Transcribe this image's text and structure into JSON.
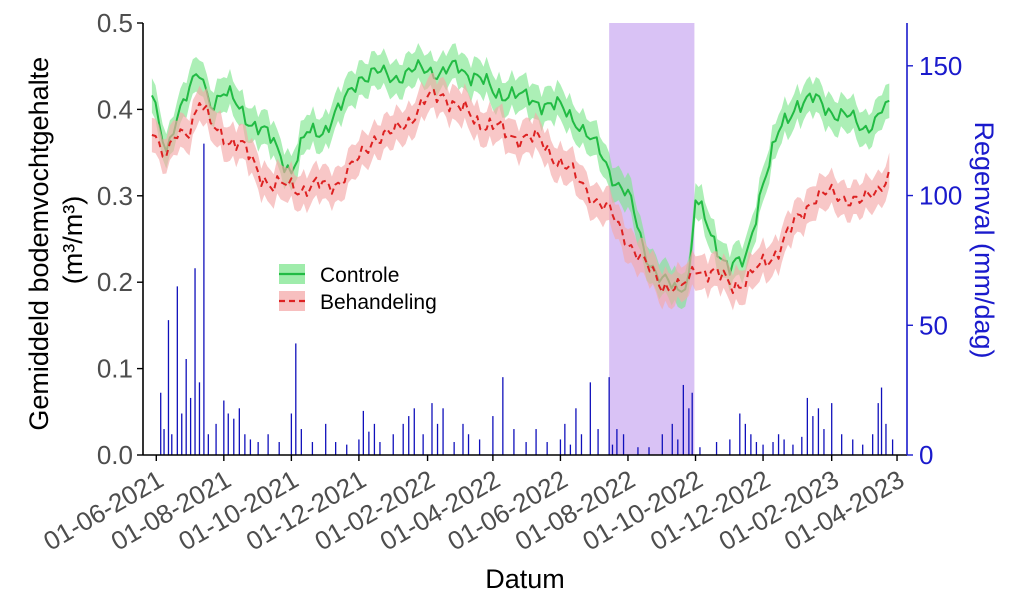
{
  "chart_data": {
    "type": "line",
    "xlabel": "Datum",
    "ylabel": [
      "Gemiddeld bodemvochtgehalte",
      "(m³/m³)"
    ],
    "y2label": "Regenval (mm/dag)",
    "x_range": [
      "2021-05-20",
      "2023-04-10"
    ],
    "ylim": [
      0,
      0.5
    ],
    "y2lim": [
      0,
      166.5
    ],
    "x_ticks": [
      "2021-06-01",
      "2021-08-01",
      "2021-10-01",
      "2021-12-01",
      "2022-02-01",
      "2022-04-01",
      "2022-06-01",
      "2022-08-01",
      "2022-10-01",
      "2022-12-01",
      "2023-02-01",
      "2023-04-01"
    ],
    "x_tick_labels": [
      "01-06-2021",
      "01-08-2021",
      "01-10-2021",
      "01-12-2021",
      "01-02-2022",
      "01-04-2022",
      "01-06-2022",
      "01-08-2022",
      "01-10-2022",
      "01-12-2022",
      "01-02-2023",
      "01-04-2023"
    ],
    "y_ticks": [
      0.0,
      0.1,
      0.2,
      0.3,
      0.4,
      0.5
    ],
    "y_tick_labels": [
      "0.0",
      "0.1",
      "0.2",
      "0.3",
      "0.4",
      "0.5"
    ],
    "y2_ticks": [
      0,
      50,
      100,
      150
    ],
    "y2_tick_labels": [
      "0",
      "50",
      "100",
      "150"
    ],
    "grid": false,
    "legend_position": "center-left",
    "highlight_period": {
      "start": "2022-07-15",
      "end": "2022-09-30",
      "color": "#d9c2f5"
    },
    "series": [
      {
        "name": "Controle",
        "style": "solid",
        "color": "#22bb44",
        "band_color": "#7fe68f",
        "band_halfwidth": 0.02,
        "x": [
          "2021-05-28",
          "2021-06-10",
          "2021-06-20",
          "2021-07-01",
          "2021-07-10",
          "2021-07-20",
          "2021-08-01",
          "2021-08-15",
          "2021-09-01",
          "2021-09-15",
          "2021-10-01",
          "2021-10-15",
          "2021-11-01",
          "2021-11-15",
          "2021-12-01",
          "2021-12-15",
          "2022-01-01",
          "2022-01-15",
          "2022-02-01",
          "2022-02-15",
          "2022-03-01",
          "2022-03-15",
          "2022-04-01",
          "2022-04-15",
          "2022-05-01",
          "2022-05-15",
          "2022-06-01",
          "2022-06-15",
          "2022-07-01",
          "2022-07-15",
          "2022-08-01",
          "2022-08-15",
          "2022-09-01",
          "2022-09-15",
          "2022-09-25",
          "2022-10-01",
          "2022-10-15",
          "2022-11-01",
          "2022-11-15",
          "2022-12-01",
          "2022-12-15",
          "2023-01-01",
          "2023-01-15",
          "2023-02-01",
          "2023-02-15",
          "2023-03-01",
          "2023-03-15",
          "2023-03-25"
        ],
        "y": [
          0.41,
          0.35,
          0.4,
          0.42,
          0.44,
          0.41,
          0.42,
          0.4,
          0.38,
          0.36,
          0.33,
          0.37,
          0.38,
          0.4,
          0.44,
          0.44,
          0.44,
          0.44,
          0.45,
          0.44,
          0.45,
          0.44,
          0.42,
          0.42,
          0.41,
          0.41,
          0.4,
          0.39,
          0.36,
          0.33,
          0.3,
          0.24,
          0.2,
          0.19,
          0.21,
          0.3,
          0.25,
          0.22,
          0.22,
          0.32,
          0.37,
          0.41,
          0.41,
          0.4,
          0.39,
          0.38,
          0.39,
          0.41
        ]
      },
      {
        "name": "Behandeling",
        "style": "dashed",
        "color": "#dd2222",
        "band_color": "#f4a9a9",
        "band_halfwidth": 0.02,
        "x": [
          "2021-05-28",
          "2021-06-10",
          "2021-06-20",
          "2021-07-01",
          "2021-07-10",
          "2021-07-20",
          "2021-08-01",
          "2021-08-15",
          "2021-09-01",
          "2021-09-15",
          "2021-10-01",
          "2021-10-15",
          "2021-11-01",
          "2021-11-15",
          "2021-12-01",
          "2021-12-15",
          "2022-01-01",
          "2022-01-15",
          "2022-02-01",
          "2022-02-15",
          "2022-03-01",
          "2022-03-15",
          "2022-04-01",
          "2022-04-15",
          "2022-05-01",
          "2022-05-15",
          "2022-06-01",
          "2022-06-15",
          "2022-07-01",
          "2022-07-15",
          "2022-08-01",
          "2022-08-15",
          "2022-09-01",
          "2022-09-15",
          "2022-09-25",
          "2022-10-01",
          "2022-10-15",
          "2022-11-01",
          "2022-11-15",
          "2022-12-01",
          "2022-12-15",
          "2023-01-01",
          "2023-01-15",
          "2023-02-01",
          "2023-02-15",
          "2023-03-01",
          "2023-03-15",
          "2023-03-25"
        ],
        "y": [
          0.38,
          0.34,
          0.37,
          0.38,
          0.41,
          0.38,
          0.37,
          0.36,
          0.33,
          0.31,
          0.31,
          0.31,
          0.31,
          0.32,
          0.34,
          0.37,
          0.37,
          0.39,
          0.41,
          0.42,
          0.4,
          0.39,
          0.38,
          0.37,
          0.37,
          0.36,
          0.34,
          0.32,
          0.3,
          0.28,
          0.25,
          0.22,
          0.2,
          0.19,
          0.2,
          0.22,
          0.21,
          0.2,
          0.2,
          0.22,
          0.24,
          0.27,
          0.3,
          0.3,
          0.3,
          0.29,
          0.31,
          0.33
        ]
      }
    ],
    "rainfall": {
      "name": "Regenval",
      "color": "#1010bb",
      "x": [
        "2021-06-05",
        "2021-06-08",
        "2021-06-12",
        "2021-06-15",
        "2021-06-20",
        "2021-06-24",
        "2021-06-28",
        "2021-07-02",
        "2021-07-06",
        "2021-07-10",
        "2021-07-14",
        "2021-07-18",
        "2021-07-25",
        "2021-08-01",
        "2021-08-05",
        "2021-08-10",
        "2021-08-15",
        "2021-08-20",
        "2021-08-25",
        "2021-09-01",
        "2021-09-10",
        "2021-09-20",
        "2021-10-01",
        "2021-10-05",
        "2021-10-10",
        "2021-10-20",
        "2021-11-01",
        "2021-11-10",
        "2021-11-20",
        "2021-12-01",
        "2021-12-05",
        "2021-12-10",
        "2021-12-15",
        "2021-12-20",
        "2022-01-01",
        "2022-01-10",
        "2022-01-15",
        "2022-01-20",
        "2022-01-28",
        "2022-02-05",
        "2022-02-10",
        "2022-02-15",
        "2022-02-25",
        "2022-03-05",
        "2022-03-10",
        "2022-03-20",
        "2022-04-01",
        "2022-04-10",
        "2022-04-20",
        "2022-05-01",
        "2022-05-10",
        "2022-05-20",
        "2022-06-01",
        "2022-06-05",
        "2022-06-10",
        "2022-06-15",
        "2022-06-20",
        "2022-06-28",
        "2022-07-05",
        "2022-07-15",
        "2022-07-18",
        "2022-07-22",
        "2022-07-28",
        "2022-08-10",
        "2022-08-20",
        "2022-09-01",
        "2022-09-10",
        "2022-09-15",
        "2022-09-20",
        "2022-09-25",
        "2022-09-28",
        "2022-10-05",
        "2022-10-20",
        "2022-11-01",
        "2022-11-10",
        "2022-11-15",
        "2022-11-20",
        "2022-11-25",
        "2022-12-01",
        "2022-12-10",
        "2022-12-15",
        "2022-12-20",
        "2022-12-28",
        "2023-01-05",
        "2023-01-10",
        "2023-01-15",
        "2023-01-20",
        "2023-01-25",
        "2023-02-01",
        "2023-02-10",
        "2023-02-20",
        "2023-03-01",
        "2023-03-10",
        "2023-03-15",
        "2023-03-18",
        "2023-03-22",
        "2023-03-28"
      ],
      "y": [
        24,
        10,
        52,
        8,
        65,
        16,
        37,
        22,
        72,
        28,
        120,
        8,
        12,
        21,
        16,
        14,
        18,
        8,
        6,
        5,
        8,
        5,
        16,
        43,
        10,
        5,
        12,
        5,
        4,
        6,
        17,
        9,
        12,
        5,
        8,
        12,
        15,
        18,
        8,
        20,
        12,
        18,
        5,
        12,
        8,
        6,
        15,
        30,
        10,
        5,
        10,
        5,
        6,
        12,
        4,
        18,
        8,
        28,
        10,
        30,
        4,
        10,
        8,
        3,
        3,
        8,
        12,
        6,
        27,
        18,
        24,
        3,
        5,
        6,
        16,
        12,
        8,
        5,
        4,
        5,
        8,
        6,
        4,
        7,
        22,
        15,
        18,
        10,
        20,
        8,
        6,
        4,
        8,
        20,
        26,
        12,
        6
      ]
    }
  },
  "legend": {
    "items": [
      {
        "label": "Controle",
        "color": "#22bb44",
        "style": "solid"
      },
      {
        "label": "Behandeling",
        "color": "#dd2222",
        "style": "dashed"
      }
    ]
  },
  "colors": {
    "axis_left": "#000000",
    "axis_right": "#1a1acc",
    "tick_label_left": "#4d4d4d",
    "tick_label_x": "#4d4d4d"
  }
}
